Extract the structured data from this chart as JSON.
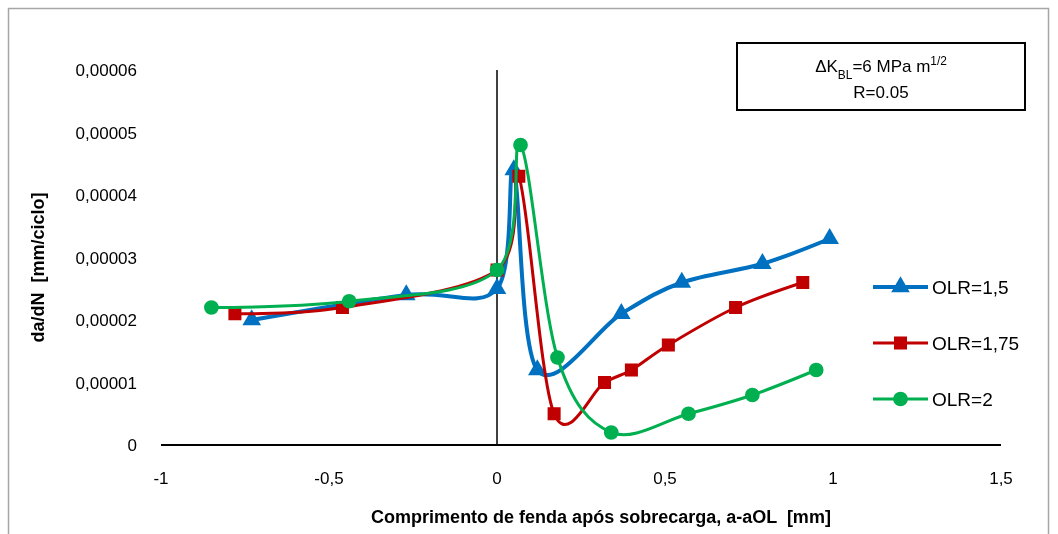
{
  "chart_data": {
    "type": "line",
    "xlabel": "Comprimento de fenda após sobrecarga, a-aOL  [mm]",
    "ylabel": "da/dN  [mm/ciclo]",
    "annotations": [
      "ΔK$_{BL}$=6 MPa m$^{1/2}$",
      "R=0.05"
    ],
    "xlim": [
      -1,
      1.5
    ],
    "xticks": [
      -1,
      {
        "value": -0.5,
        "label": "-0,5"
      },
      0,
      {
        "value": 0.5,
        "label": "0,5"
      },
      1,
      {
        "value": 1.5,
        "label": "1,5"
      }
    ],
    "ylim": [
      0,
      6e-05
    ],
    "yticks": [
      0,
      {
        "value": 1e-05,
        "label": "0,00001"
      },
      {
        "value": 2e-05,
        "label": "0,00002"
      },
      {
        "value": 3e-05,
        "label": "0,00003"
      },
      {
        "value": 4e-05,
        "label": "0,00004"
      },
      {
        "value": 5e-05,
        "label": "0,00005"
      },
      {
        "value": 6e-05,
        "label": "0,00006"
      }
    ],
    "legend": "right",
    "series": [
      {
        "name": "OLR=1,5",
        "color": "#0070c0",
        "marker": "triangle",
        "x": [
          -0.73,
          -0.27,
          0.0,
          0.05,
          0.12,
          0.37,
          0.55,
          0.79,
          0.99
        ],
        "values": [
          2e-05,
          2.4e-05,
          2.5e-05,
          4.4e-05,
          1.2e-05,
          2.1e-05,
          2.6e-05,
          2.9e-05,
          3.3e-05
        ]
      },
      {
        "name": "OLR=1,75",
        "color": "#c00000",
        "marker": "square",
        "x": [
          -0.78,
          -0.46,
          0.0,
          0.065,
          0.17,
          0.32,
          0.4,
          0.51,
          0.71,
          0.91
        ],
        "values": [
          2.1e-05,
          2.2e-05,
          2.8e-05,
          4.3e-05,
          5e-06,
          1e-05,
          1.2e-05,
          1.6e-05,
          2.2e-05,
          2.6e-05
        ]
      },
      {
        "name": "OLR=2",
        "color": "#00b050",
        "marker": "circle",
        "x": [
          -0.85,
          -0.44,
          0.0,
          0.07,
          0.18,
          0.34,
          0.57,
          0.76,
          0.95
        ],
        "values": [
          2.2e-05,
          2.3e-05,
          2.8e-05,
          4.8e-05,
          1.4e-05,
          2e-06,
          5e-06,
          8e-06,
          1.2e-05
        ]
      }
    ]
  }
}
